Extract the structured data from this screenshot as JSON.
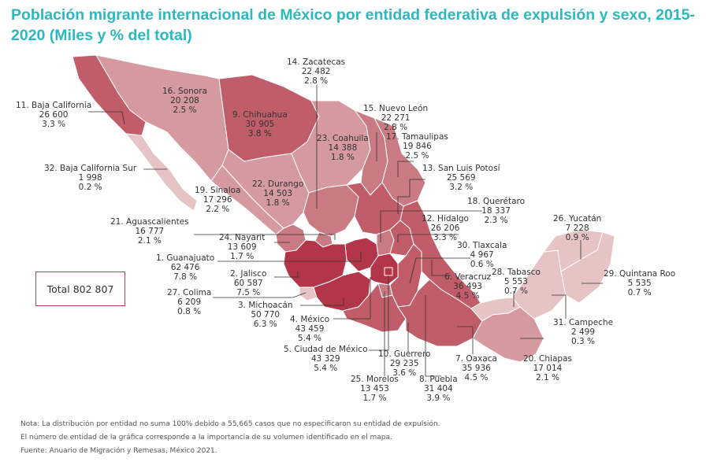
{
  "title": "Población migrante internacional de México por entidad federativa de expulsión y sexo, 2015-2020 (Miles y % del total)",
  "total": "Total 802 807",
  "colors": {
    "title": "#2bb9bd",
    "very_high": "#b3354a",
    "high": "#c15d6a",
    "mid_high": "#c97a83",
    "mid": "#d49a9f",
    "low": "#e7c4c4",
    "border": "#ffffff"
  },
  "states": {
    "s1": {
      "name": "1. Guanajuato",
      "value": "62 476",
      "pct": "7.8 %"
    },
    "s2": {
      "name": "2. Jalisco",
      "value": "60 587",
      "pct": "7.5 %"
    },
    "s3": {
      "name": "3. Michoacán",
      "value": "50 770",
      "pct": "6.3 %"
    },
    "s4": {
      "name": "4. México",
      "value": "43 459",
      "pct": "5.4 %"
    },
    "s5": {
      "name": "5. Ciudad de México",
      "value": "43 329",
      "pct": "5.4 %"
    },
    "s6": {
      "name": "6. Veracruz",
      "value": "36 493",
      "pct": "4.5 %"
    },
    "s7": {
      "name": "7. Oaxaca",
      "value": "35 936",
      "pct": "4.5 %"
    },
    "s8": {
      "name": "8. Puebla",
      "value": "31 404",
      "pct": "3.9 %"
    },
    "s9": {
      "name": "9. Chihuahua",
      "value": "30 905",
      "pct": "3.8 %"
    },
    "s10": {
      "name": "10. Guerrero",
      "value": "29 235",
      "pct": "3.6 %"
    },
    "s11": {
      "name": "11. Baja California",
      "value": "26 600",
      "pct": "3.3 %"
    },
    "s12": {
      "name": "12. Hidalgo",
      "value": "26 206",
      "pct": "3.3 %"
    },
    "s13": {
      "name": "13. San Luis Potosí",
      "value": "25 569",
      "pct": "3.2 %"
    },
    "s14": {
      "name": "14. Zacatecas",
      "value": "22 482",
      "pct": "2.8 %"
    },
    "s15": {
      "name": "15. Nuevo León",
      "value": "22 271",
      "pct": "2.8 %"
    },
    "s16": {
      "name": "16. Sonora",
      "value": "20 208",
      "pct": "2.5 %"
    },
    "s17": {
      "name": "17. Tamaulipas",
      "value": "19  846",
      "pct": "2.5 %"
    },
    "s18": {
      "name": "18. Querétaro",
      "value": "18 337",
      "pct": "2.3 %"
    },
    "s19": {
      "name": "19. Sinaloa",
      "value": "17 296",
      "pct": "2.2 %"
    },
    "s20": {
      "name": "20. Chiapas",
      "value": "17 014",
      "pct": "2.1 %"
    },
    "s21": {
      "name": "21. Aguascalientes",
      "value": "16 777",
      "pct": "2.1 %"
    },
    "s22": {
      "name": "22. Durango",
      "value": "14 503",
      "pct": "1.8 %"
    },
    "s23": {
      "name": "23. Coahuila",
      "value": "14 388",
      "pct": "1.8 %"
    },
    "s24": {
      "name": "24. Nayarit",
      "value": "13 609",
      "pct": "1.7 %"
    },
    "s25": {
      "name": "25. Morelos",
      "value": "13 453",
      "pct": "1.7 %"
    },
    "s26": {
      "name": "26. Yucatán",
      "value": "7 228",
      "pct": "0.9 %"
    },
    "s27": {
      "name": "27. Colima",
      "value": "6 209",
      "pct": "0.8 %"
    },
    "s28": {
      "name": "28. Tabasco",
      "value": "5 553",
      "pct": "0.7 %"
    },
    "s29": {
      "name": "29. Quintana Roo",
      "value": "5 535",
      "pct": "0.7 %"
    },
    "s30": {
      "name": "30. Tlaxcala",
      "value": "4 967",
      "pct": "0.6 %"
    },
    "s31": {
      "name": "31. Campeche",
      "value": "2 499",
      "pct": "0.3 %"
    },
    "s32": {
      "name": "32. Baja California Sur",
      "value": "1 998",
      "pct": "0.2 %"
    }
  },
  "notes": [
    "Nota: La distribución por entidad no suma 100% debido a 55,665 casos que no especificaron su entidad de expulsión.",
    "El número de entidad de la gráfica corresponde a la importancia de su volumen identificado en el mapa.",
    "Fuente: Anuario de Migración y Remesas, México 2021."
  ]
}
